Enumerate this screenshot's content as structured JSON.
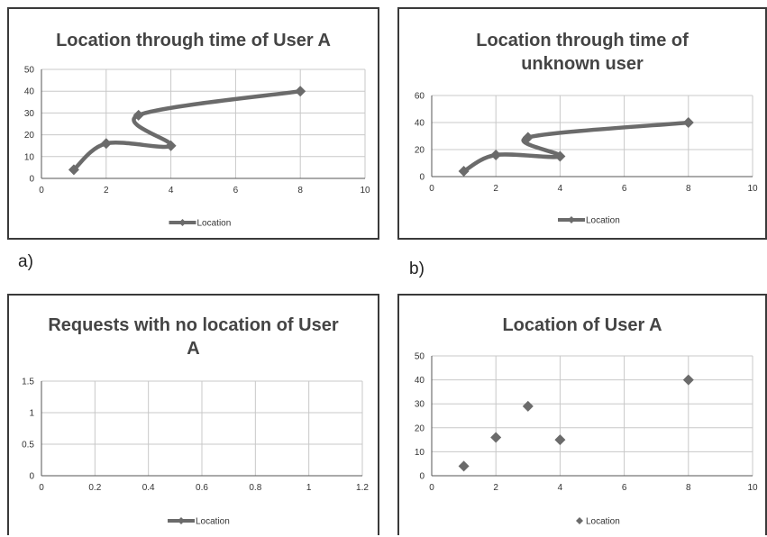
{
  "labels": {
    "a": "a)",
    "b": "b)"
  },
  "colors": {
    "series": "#6b6b6b",
    "grid": "#c8c8c8",
    "axis": "#555555"
  },
  "chart_data": [
    {
      "type": "line",
      "title": "Location through time of User A",
      "x": [
        1,
        2,
        4,
        3,
        8
      ],
      "series": [
        {
          "name": "Location",
          "values": [
            4,
            16,
            15,
            29,
            40
          ]
        }
      ],
      "xlim": [
        0,
        10
      ],
      "ylim": [
        0,
        50
      ],
      "xticks": [
        0,
        2,
        4,
        6,
        8,
        10
      ],
      "yticks": [
        0,
        10,
        20,
        30,
        40,
        50
      ],
      "grid": true,
      "legend": "bottom",
      "smooth": true
    },
    {
      "type": "line",
      "title": "Location through time of unknown user",
      "x": [
        1,
        2,
        4,
        3,
        8
      ],
      "series": [
        {
          "name": "Location",
          "values": [
            4,
            16,
            15,
            29,
            40
          ]
        }
      ],
      "xlim": [
        0,
        10
      ],
      "ylim": [
        0,
        60
      ],
      "xticks": [
        0,
        2,
        4,
        6,
        8,
        10
      ],
      "yticks": [
        0,
        20,
        40,
        60
      ],
      "grid": true,
      "legend": "bottom",
      "smooth": true
    },
    {
      "type": "line",
      "title": "Requests with no location of User A",
      "x": [],
      "series": [
        {
          "name": "Location",
          "values": []
        }
      ],
      "xlim": [
        0,
        1.2
      ],
      "ylim": [
        0,
        1.5
      ],
      "xticks": [
        0,
        0.2,
        0.4,
        0.6,
        0.8,
        1,
        1.2
      ],
      "yticks": [
        0,
        0.5,
        1,
        1.5
      ],
      "grid": true,
      "legend": "bottom"
    },
    {
      "type": "scatter",
      "title": "Location of User A",
      "x": [
        1,
        2,
        3,
        4,
        8
      ],
      "series": [
        {
          "name": "Location",
          "values": [
            4,
            16,
            29,
            15,
            40
          ]
        }
      ],
      "xlim": [
        0,
        10
      ],
      "ylim": [
        0,
        50
      ],
      "xticks": [
        0,
        2,
        4,
        6,
        8,
        10
      ],
      "yticks": [
        0,
        10,
        20,
        30,
        40,
        50
      ],
      "grid": true,
      "legend": "bottom"
    }
  ]
}
